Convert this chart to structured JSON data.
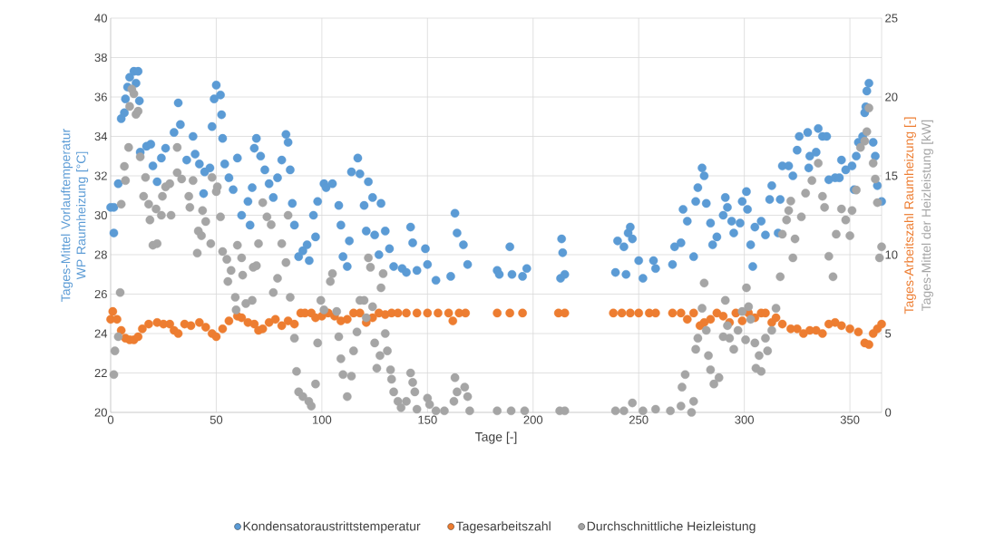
{
  "chart_data": {
    "type": "scatter",
    "xlabel": "Tage [-]",
    "ylabel": "Tages-Mittel Vorlauftemperatur WP Raumheizung [°C]",
    "y2label": [
      "Tages-Arbeitszahl Raumheizung [-]",
      "Tages-Mittel der Heizleistung [kW]"
    ],
    "xlim": [
      0,
      365
    ],
    "xticks": [
      0,
      50,
      100,
      150,
      200,
      250,
      300,
      350
    ],
    "ylim": [
      20,
      40
    ],
    "yticks": [
      20,
      22,
      24,
      26,
      28,
      30,
      32,
      34,
      36,
      38,
      40
    ],
    "y2lim": [
      0,
      25
    ],
    "y2ticks": [
      0,
      5,
      10,
      15,
      20,
      25
    ],
    "grid": true,
    "legend": "bottom",
    "marker": "circle",
    "series": [
      {
        "name": "Kondensatoraustrittstemperatur",
        "color": "#5b9bd5",
        "x": [
          0,
          1.5,
          1.5,
          3.6,
          5,
          6.5,
          7,
          8,
          9,
          11,
          12,
          13,
          13.6,
          14,
          17,
          19,
          20,
          22,
          24,
          26,
          30,
          32,
          33,
          36,
          39,
          40,
          42,
          44,
          44.5,
          47,
          48,
          49,
          50,
          52,
          52.5,
          53,
          54,
          56,
          58,
          60,
          62,
          65,
          66,
          67,
          68,
          69,
          71,
          73,
          75,
          77,
          79,
          81,
          83,
          84,
          85,
          86,
          87,
          89,
          91,
          93,
          94,
          96,
          97,
          98,
          101,
          102,
          105,
          108,
          109,
          110,
          112,
          113,
          114,
          117,
          118,
          120,
          121,
          122,
          124,
          125,
          127,
          128,
          130,
          132,
          134,
          138,
          140,
          142,
          143,
          145,
          149,
          150,
          154,
          161,
          163,
          164,
          167,
          169,
          183,
          184,
          189,
          190,
          195,
          197,
          213,
          213.5,
          214,
          215,
          239,
          240,
          243,
          244,
          245,
          246,
          247,
          250,
          252,
          257,
          258,
          266,
          267,
          270,
          271,
          273,
          276,
          277,
          278,
          280,
          281,
          282,
          284,
          285,
          287,
          290,
          291,
          292,
          294,
          295,
          298,
          299,
          301,
          301.5,
          303,
          304,
          305,
          308,
          310,
          312,
          313,
          316,
          317,
          318,
          321,
          323,
          325,
          326,
          330,
          330.5,
          331,
          334,
          335,
          337,
          339,
          340,
          343,
          345,
          346,
          348,
          351,
          352,
          353,
          354,
          356,
          357,
          357.5,
          358,
          359,
          361,
          362,
          363,
          365
        ],
        "values": [
          30.4,
          29.1,
          30.4,
          31.6,
          34.9,
          35.2,
          35.9,
          36.5,
          37.0,
          37.3,
          36.7,
          37.3,
          35.8,
          33.2,
          33.5,
          33.6,
          32.5,
          31.7,
          32.9,
          33.4,
          34.2,
          35.7,
          34.6,
          32.8,
          34.0,
          33.1,
          32.6,
          31.1,
          32.2,
          32.4,
          34.5,
          35.9,
          36.6,
          36.1,
          35.1,
          33.9,
          32.6,
          31.9,
          31.3,
          32.9,
          30.0,
          30.7,
          29.5,
          31.4,
          33.4,
          33.9,
          33.0,
          32.3,
          31.6,
          30.9,
          31.9,
          32.8,
          34.1,
          33.7,
          32.3,
          30.6,
          29.5,
          27.9,
          28.2,
          28.5,
          27.7,
          30.0,
          28.9,
          30.7,
          31.6,
          31.4,
          31.6,
          30.5,
          29.5,
          27.9,
          27.4,
          28.7,
          32.2,
          32.9,
          32.1,
          30.5,
          29.2,
          31.7,
          30.9,
          29.0,
          28.0,
          30.6,
          29.2,
          28.3,
          27.4,
          27.3,
          27.1,
          29.4,
          28.6,
          27.2,
          28.3,
          27.5,
          26.7,
          26.9,
          30.1,
          29.1,
          28.5,
          27.5,
          27.2,
          27.0,
          28.4,
          27.0,
          26.9,
          27.3,
          26.8,
          28.8,
          28.1,
          27.0,
          27.1,
          28.7,
          28.4,
          27.0,
          29.1,
          29.4,
          28.8,
          27.7,
          26.8,
          27.7,
          27.3,
          27.5,
          28.4,
          28.6,
          30.3,
          29.7,
          27.9,
          30.7,
          31.4,
          32.4,
          32.0,
          30.6,
          29.6,
          28.5,
          28.9,
          30.0,
          30.9,
          30.4,
          29.7,
          29.1,
          29.6,
          30.7,
          31.2,
          30.3,
          28.5,
          27.4,
          29.4,
          29.7,
          29.0,
          30.8,
          31.5,
          29.1,
          30.8,
          32.5,
          32.5,
          32.0,
          33.3,
          34.0,
          34.2,
          32.4,
          33.0,
          33.2,
          34.4,
          34.0,
          34.0,
          31.8,
          31.9,
          31.9,
          32.8,
          32.3,
          32.5,
          31.3,
          33.0,
          33.7,
          34.0,
          35.2,
          35.5,
          36.3,
          36.7,
          33.7,
          33.0,
          31.5,
          30.7
        ]
      },
      {
        "name": "Tagesarbeitszahl",
        "color": "#ed7d31",
        "axis": "y2",
        "x": [
          0,
          1,
          3,
          5,
          7,
          9,
          11,
          13,
          15,
          18,
          22,
          25,
          28,
          30,
          32,
          35,
          38,
          42,
          45,
          48,
          50,
          53,
          56,
          60,
          62,
          65,
          68,
          70,
          72,
          75,
          78,
          81,
          84,
          87,
          90,
          92,
          95,
          97,
          100,
          103,
          106,
          109,
          112,
          115,
          118,
          121,
          124,
          127,
          130,
          133,
          136,
          140,
          145,
          150,
          155,
          160,
          162,
          165,
          168,
          183,
          189,
          195,
          212,
          215,
          238,
          242,
          246,
          250,
          255,
          258,
          266,
          270,
          273,
          276,
          279,
          281,
          284,
          287,
          290,
          293,
          296,
          299,
          302,
          305,
          308,
          310,
          313,
          315,
          318,
          322,
          325,
          328,
          331,
          334,
          337,
          340,
          343,
          346,
          350,
          354,
          357,
          359,
          361,
          363,
          365
        ],
        "values": [
          5.9,
          6.4,
          5.9,
          5.2,
          4.7,
          4.6,
          4.6,
          4.8,
          5.3,
          5.6,
          5.7,
          5.6,
          5.6,
          5.2,
          5.0,
          5.6,
          5.5,
          5.7,
          5.4,
          5.0,
          4.8,
          5.3,
          5.8,
          6.1,
          6.0,
          5.7,
          5.6,
          5.2,
          5.3,
          5.7,
          5.9,
          5.5,
          5.8,
          5.6,
          6.3,
          6.3,
          6.3,
          6.0,
          6.1,
          6.3,
          6.1,
          5.8,
          5.9,
          6.3,
          6.3,
          5.7,
          6.0,
          6.3,
          6.2,
          6.3,
          6.3,
          6.3,
          6.3,
          6.3,
          6.3,
          6.3,
          5.8,
          6.3,
          6.3,
          6.3,
          6.3,
          6.3,
          6.3,
          6.3,
          6.3,
          6.3,
          6.3,
          6.3,
          6.3,
          6.3,
          6.3,
          6.3,
          5.9,
          6.3,
          5.5,
          5.7,
          5.9,
          6.3,
          6.1,
          5.7,
          6.3,
          5.8,
          6.3,
          6.0,
          6.3,
          6.3,
          5.7,
          6.0,
          5.6,
          5.3,
          5.3,
          5.0,
          5.2,
          5.2,
          5.0,
          5.6,
          5.7,
          5.5,
          5.3,
          5.1,
          4.4,
          4.3,
          5.0,
          5.3,
          5.6
        ]
      },
      {
        "name": "Durchschnittliche Heizleistung",
        "color": "#a5a5a5",
        "axis": "y2",
        "x": [
          1.5,
          2,
          3.6,
          4.5,
          5,
          6.5,
          7,
          8.5,
          9,
          10,
          11,
          12,
          13,
          14,
          15.6,
          16.5,
          18,
          18.6,
          20,
          21.5,
          22,
          24,
          24.5,
          26,
          28,
          28.6,
          31.5,
          31.5,
          33.6,
          37,
          37.5,
          39,
          41,
          41.5,
          43,
          43.5,
          45,
          47.4,
          48,
          50,
          50.5,
          52,
          53,
          55,
          55.5,
          57,
          59,
          59.4,
          60,
          62,
          62.5,
          64,
          67,
          67.5,
          69,
          70,
          72,
          74,
          76,
          77,
          79,
          81,
          83,
          84,
          85,
          87,
          88,
          89,
          91,
          93.8,
          95,
          97,
          98,
          99.5,
          101,
          104,
          105,
          107,
          108,
          109,
          110,
          112,
          114,
          115,
          116.6,
          118,
          120,
          121,
          122,
          123,
          124,
          125,
          126,
          127.5,
          128,
          129,
          130,
          131,
          132.5,
          133,
          134,
          136,
          137.5,
          140,
          142,
          143,
          144,
          145,
          150,
          151,
          154,
          158,
          162.5,
          163,
          164,
          167.6,
          169,
          170,
          183,
          189.6,
          196,
          212.6,
          215,
          239,
          243,
          247,
          252,
          258,
          265,
          270,
          270.5,
          272,
          275,
          276,
          277,
          278,
          280,
          281,
          282,
          283,
          284,
          285.6,
          288,
          290,
          291,
          292,
          293,
          295,
          297,
          299,
          300.6,
          301,
          302,
          303,
          305,
          305.5,
          307,
          308,
          310,
          311,
          313,
          315,
          317,
          318,
          320,
          321,
          322,
          323,
          324,
          327,
          329,
          332,
          335,
          337,
          338,
          340,
          342,
          343.5,
          346,
          348,
          350,
          351,
          353,
          355,
          357,
          358,
          359,
          361,
          362,
          363,
          364,
          365
        ],
        "values": [
          2.4,
          3.9,
          4.8,
          7.6,
          13.2,
          15.6,
          14.7,
          16.8,
          19.4,
          20.5,
          20.2,
          18.9,
          19.1,
          16.2,
          13.7,
          14.9,
          13.2,
          12.2,
          10.6,
          12.9,
          10.7,
          12.5,
          13.7,
          14.3,
          14.5,
          12.5,
          16.8,
          15.2,
          14.8,
          13.7,
          13.0,
          14.7,
          10.1,
          11.5,
          11.2,
          12.8,
          12.1,
          10.7,
          14.9,
          14.0,
          14.3,
          12.4,
          10.2,
          9.7,
          8.3,
          9.0,
          7.3,
          6.5,
          10.6,
          9.8,
          8.7,
          6.9,
          7.1,
          9.2,
          9.3,
          10.7,
          13.3,
          12.4,
          11.9,
          7.6,
          8.5,
          10.7,
          9.5,
          12.5,
          7.3,
          4.7,
          2.6,
          1.3,
          1.0,
          0.7,
          0.4,
          1.8,
          4.4,
          7.1,
          6.5,
          8.3,
          8.8,
          6.4,
          4.8,
          3.4,
          2.4,
          1.0,
          2.3,
          3.9,
          5.1,
          7.1,
          7.1,
          6.0,
          9.8,
          9.2,
          6.7,
          4.4,
          2.8,
          3.6,
          7.9,
          8.8,
          5.0,
          3.9,
          2.7,
          2.1,
          1.3,
          0.7,
          0.3,
          0.7,
          2.5,
          1.9,
          1.3,
          0.2,
          0.9,
          0.5,
          0.1,
          0.1,
          0.7,
          2.2,
          1.3,
          1.6,
          1.0,
          0.1,
          0.1,
          0.1,
          0.1,
          0.1,
          0.1,
          0.1,
          0.1,
          0.6,
          0.1,
          0.2,
          0.1,
          0.4,
          1.6,
          2.4,
          0.0,
          0.7,
          4.0,
          4.7,
          6.6,
          8.2,
          5.2,
          3.6,
          2.7,
          1.8,
          2.2,
          4.8,
          7.1,
          5.5,
          4.7,
          4.0,
          5.2,
          6.4,
          4.6,
          7.9,
          6.7,
          5.9,
          4.4,
          2.8,
          3.6,
          2.6,
          4.7,
          3.9,
          5.2,
          6.6,
          8.6,
          11.3,
          12.2,
          12.8,
          13.4,
          9.8,
          11.0,
          12.4,
          13.9,
          14.7,
          15.8,
          13.7,
          13.0,
          9.9,
          8.6,
          11.3,
          12.9,
          12.2,
          11.2,
          12.8,
          14.1,
          16.8,
          17.2,
          17.8,
          19.3,
          15.8,
          14.8,
          13.3,
          9.8,
          10.5
        ]
      }
    ]
  }
}
